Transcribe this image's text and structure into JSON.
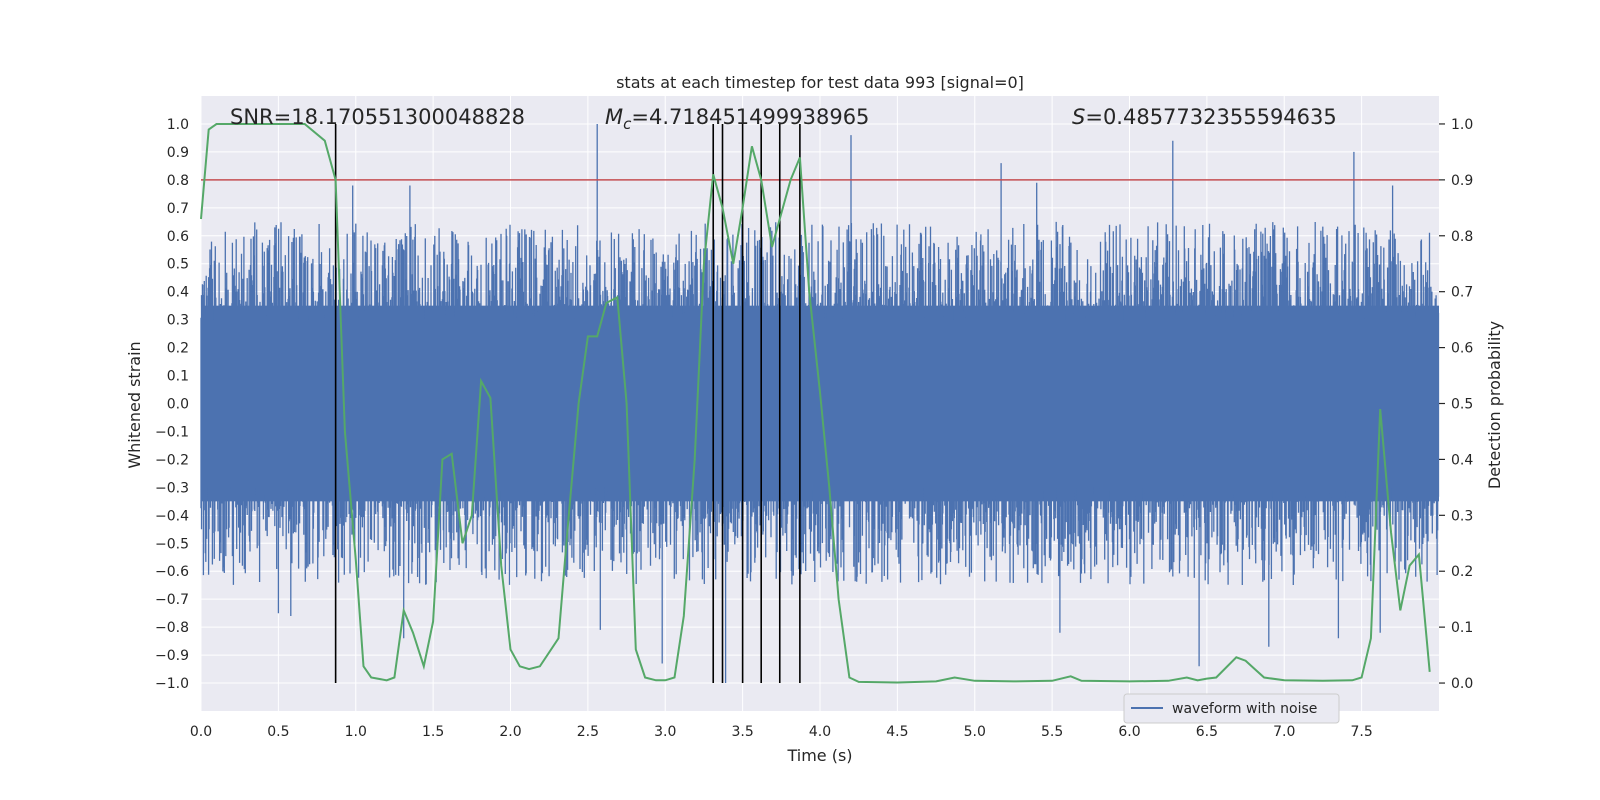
{
  "chart_data": {
    "type": "line",
    "title": "stats at each timestep for test data 993 [signal=0]",
    "xlabel": "Time (s)",
    "ylabel_left": "Whitened strain",
    "ylabel_right": "Detection probability",
    "xlim": [
      0.0,
      8.0
    ],
    "ylim_left": [
      -1.1,
      1.1
    ],
    "ylim_right": [
      -0.05,
      1.05
    ],
    "x_ticks": [
      "0.0",
      "0.5",
      "1.0",
      "1.5",
      "2.0",
      "2.5",
      "3.0",
      "3.5",
      "4.0",
      "4.5",
      "5.0",
      "5.5",
      "6.0",
      "6.5",
      "7.0",
      "7.5"
    ],
    "y_ticks_left": [
      "1.0",
      "0.9",
      "0.8",
      "0.7",
      "0.6",
      "0.5",
      "0.4",
      "0.3",
      "0.2",
      "0.1",
      "0.0",
      "−0.1",
      "−0.2",
      "−0.3",
      "−0.4",
      "−0.5",
      "−0.6",
      "−0.7",
      "−0.8",
      "−0.9",
      "−1.0"
    ],
    "y_ticks_right": [
      "1.0",
      "0.9",
      "0.8",
      "0.7",
      "0.6",
      "0.5",
      "0.4",
      "0.3",
      "0.2",
      "0.1",
      "0.0"
    ],
    "annotations": {
      "snr_text": "SNR=18.170551300048828",
      "mc_symbol": "M",
      "mc_subscript": "c",
      "mc_value": "=4.718451499938965",
      "s_symbol": "S",
      "s_value": "=0.4857732355594635"
    },
    "threshold": {
      "value": 0.8,
      "axis": "left",
      "color": "#c44e52"
    },
    "detection_times": [
      0.87,
      3.31,
      3.37,
      3.5,
      3.62,
      3.74,
      3.87
    ],
    "legend": {
      "label": "waveform with noise",
      "placement": "lower-right"
    },
    "series": [
      {
        "name": "waveform with noise",
        "axis": "left",
        "color": "#4c72b0",
        "kind": "noise",
        "base_band": 0.4,
        "spikes": [
          {
            "t": 2.56,
            "v": 1.0
          },
          {
            "t": 4.2,
            "v": 0.96
          },
          {
            "t": 6.28,
            "v": 0.94
          },
          {
            "t": 7.45,
            "v": 0.9
          },
          {
            "t": 5.17,
            "v": 0.86
          },
          {
            "t": 1.35,
            "v": 0.78
          },
          {
            "t": 0.98,
            "v": 0.78
          },
          {
            "t": 5.4,
            "v": 0.79
          },
          {
            "t": 7.7,
            "v": 0.78
          },
          {
            "t": 3.39,
            "v": -1.0
          },
          {
            "t": 6.45,
            "v": -0.94
          },
          {
            "t": 2.98,
            "v": -0.93
          },
          {
            "t": 6.9,
            "v": -0.87
          },
          {
            "t": 7.35,
            "v": -0.84
          },
          {
            "t": 5.55,
            "v": -0.82
          },
          {
            "t": 1.31,
            "v": -0.84
          },
          {
            "t": 2.58,
            "v": -0.81
          },
          {
            "t": 7.62,
            "v": -0.82
          },
          {
            "t": 0.5,
            "v": -0.75
          },
          {
            "t": 0.58,
            "v": -0.76
          }
        ]
      },
      {
        "name": "detection probability",
        "axis": "right",
        "color": "#55a868",
        "x": [
          0.0,
          0.05,
          0.1,
          0.2,
          0.3,
          0.45,
          0.6,
          0.67,
          0.8,
          0.87,
          0.93,
          1.0,
          1.05,
          1.1,
          1.2,
          1.25,
          1.31,
          1.37,
          1.44,
          1.5,
          1.56,
          1.62,
          1.69,
          1.75,
          1.81,
          1.87,
          1.94,
          2.0,
          2.06,
          2.12,
          2.19,
          2.31,
          2.37,
          2.44,
          2.5,
          2.56,
          2.62,
          2.69,
          2.75,
          2.81,
          2.87,
          2.94,
          3.0,
          3.06,
          3.12,
          3.19,
          3.25,
          3.31,
          3.37,
          3.44,
          3.5,
          3.56,
          3.62,
          3.69,
          3.75,
          3.81,
          3.87,
          3.93,
          4.0,
          4.06,
          4.12,
          4.19,
          4.25,
          4.5,
          4.75,
          4.87,
          5.0,
          5.25,
          5.5,
          5.62,
          5.69,
          6.0,
          6.25,
          6.37,
          6.44,
          6.5,
          6.56,
          6.69,
          6.75,
          6.81,
          6.87,
          7.0,
          7.25,
          7.44,
          7.5,
          7.56,
          7.62,
          7.69,
          7.75,
          7.81,
          7.87,
          7.94
        ],
        "values": [
          0.83,
          0.99,
          1.0,
          1.0,
          1.0,
          1.0,
          1.0,
          1.0,
          0.97,
          0.9,
          0.45,
          0.22,
          0.03,
          0.01,
          0.005,
          0.01,
          0.13,
          0.09,
          0.03,
          0.11,
          0.4,
          0.41,
          0.25,
          0.3,
          0.54,
          0.51,
          0.21,
          0.06,
          0.03,
          0.025,
          0.03,
          0.08,
          0.28,
          0.5,
          0.62,
          0.62,
          0.68,
          0.69,
          0.5,
          0.06,
          0.01,
          0.005,
          0.005,
          0.01,
          0.12,
          0.4,
          0.75,
          0.91,
          0.85,
          0.75,
          0.85,
          0.96,
          0.9,
          0.78,
          0.84,
          0.9,
          0.94,
          0.7,
          0.52,
          0.35,
          0.15,
          0.01,
          0.002,
          0.001,
          0.003,
          0.01,
          0.004,
          0.003,
          0.004,
          0.012,
          0.004,
          0.003,
          0.004,
          0.01,
          0.005,
          0.008,
          0.01,
          0.046,
          0.04,
          0.025,
          0.01,
          0.005,
          0.004,
          0.005,
          0.01,
          0.08,
          0.49,
          0.27,
          0.13,
          0.21,
          0.23,
          0.02
        ]
      }
    ]
  }
}
